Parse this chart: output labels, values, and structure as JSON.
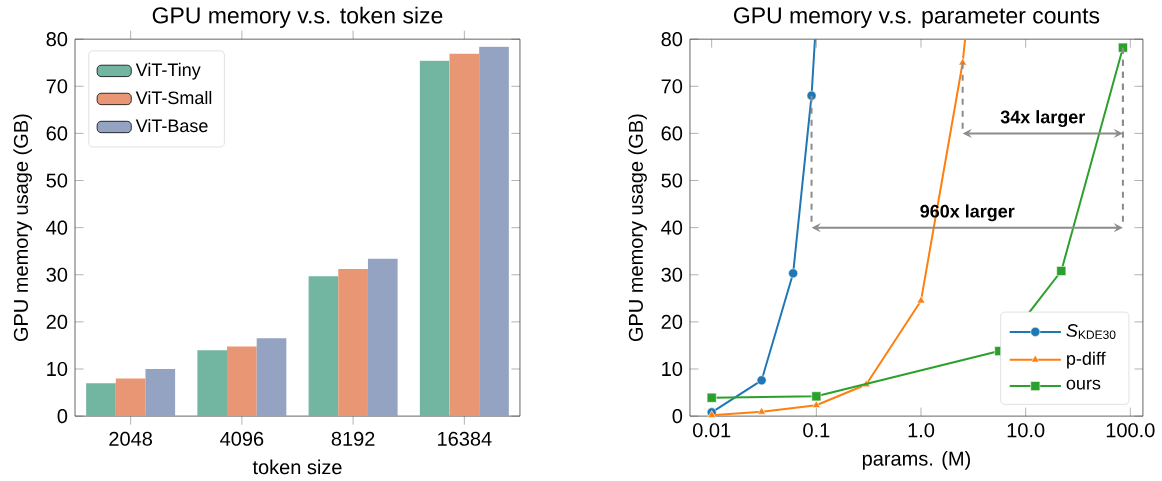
{
  "chart_data": [
    {
      "type": "bar",
      "title": "GPU memory v.s. token size",
      "xlabel": "token size",
      "ylabel": "GPU memory usage (GB)",
      "categories": [
        "2048",
        "4096",
        "8192",
        "16384"
      ],
      "series": [
        {
          "name": "ViT-Tiny",
          "color": "#72b6a1",
          "values": [
            7,
            14,
            29.7,
            75.4
          ]
        },
        {
          "name": "ViT-Small",
          "color": "#e99675",
          "values": [
            8,
            14.8,
            31.2,
            76.9
          ]
        },
        {
          "name": "ViT-Base",
          "color": "#95a3c3",
          "values": [
            10,
            16.5,
            33.4,
            78.4
          ]
        }
      ],
      "ylim": [
        0,
        80
      ],
      "yticks": [
        0,
        10,
        20,
        30,
        40,
        50,
        60,
        70,
        80
      ],
      "legend": "top left"
    },
    {
      "type": "line",
      "title": "GPU memory v.s. parameter counts",
      "xlabel": "params. (M)",
      "ylabel": "GPU memory usage (GB)",
      "log": "x",
      "xlim": [
        0.0062,
        132
      ],
      "xticks": [
        0.01,
        0.1,
        {
          "value": 1,
          "label": "1.0"
        },
        {
          "value": 10,
          "label": "10.0"
        },
        {
          "value": 100,
          "label": "100.0"
        }
      ],
      "ylim": [
        0,
        80
      ],
      "yticks": [
        0,
        10,
        20,
        30,
        40,
        50,
        60,
        70,
        80
      ],
      "legend": "bottom right",
      "line_style": "solid",
      "series": [
        {
          "name": "*S*$_{KDE30}$",
          "color": "#1f77b4",
          "marker": "circle",
          "x": [
            0.01,
            0.03,
            0.06,
            0.09,
            0.097
          ],
          "values": [
            0.8,
            7.6,
            30.3,
            68,
            80
          ]
        },
        {
          "name": "p-diff",
          "color": "#ff7f0e",
          "marker": "triangle",
          "x": [
            0.01,
            0.03,
            0.1,
            0.3,
            1.0,
            2.5,
            2.64
          ],
          "values": [
            0.2,
            0.9,
            2.3,
            6.7,
            24.5,
            75,
            80
          ]
        },
        {
          "name": "ours",
          "color": "#2ca02c",
          "marker": "square",
          "x": [
            0.01,
            0.1,
            5.6,
            21.9,
            85
          ],
          "values": [
            3.9,
            4.2,
            13.8,
            30.8,
            78.2
          ]
        }
      ],
      "annotations": [
        "960x larger",
        "34x larger"
      ]
    }
  ]
}
